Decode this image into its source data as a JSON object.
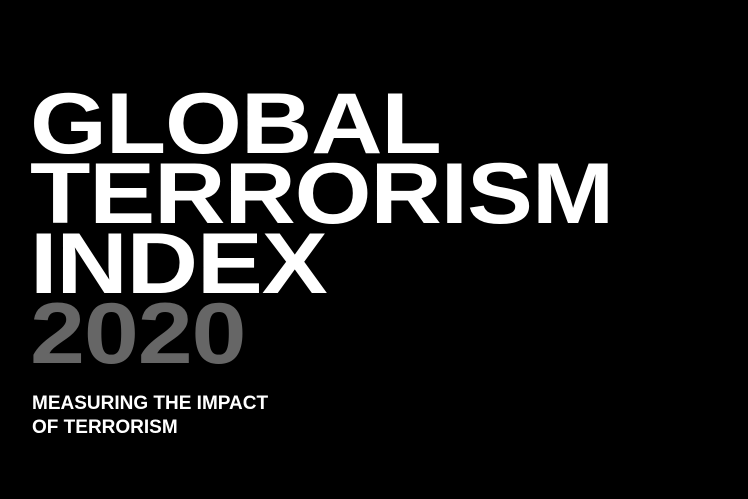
{
  "title": {
    "line1": "GLOBAL",
    "line2": "TERRORISM",
    "line3": "INDEX",
    "year": "2020"
  },
  "subtitle": {
    "line1": "MEASURING THE IMPACT",
    "line2": "OF TERRORISM"
  },
  "colors": {
    "background": "#000000",
    "title": "#ffffff",
    "year": "#666666"
  }
}
